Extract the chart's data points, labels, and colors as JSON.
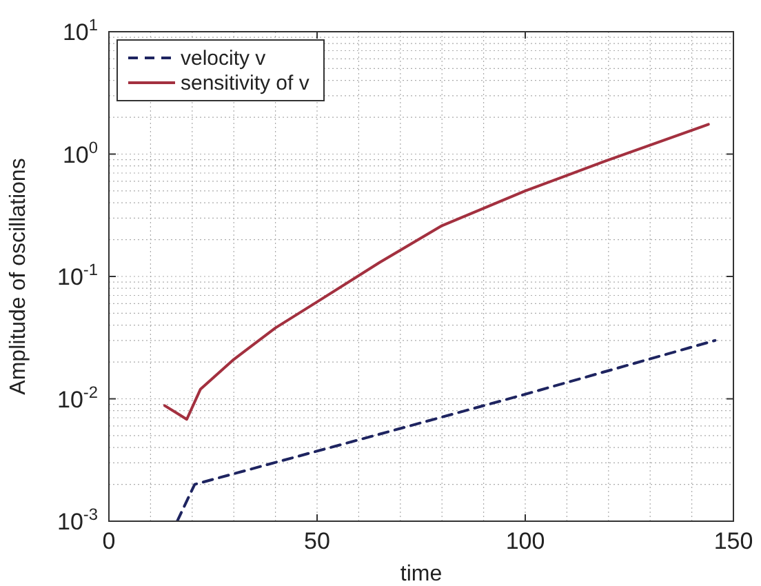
{
  "chart_data": {
    "type": "line",
    "xlabel": "time",
    "ylabel": "Amplitude of oscillations",
    "log": "y",
    "grid": true,
    "legend": "top left",
    "xlim": [
      0,
      150
    ],
    "xticks": [
      0,
      50,
      100,
      150
    ],
    "ylim": [
      0.001,
      10
    ],
    "yticks": [
      {
        "value": 0.001,
        "label": "10$^{-3}$"
      },
      {
        "value": 0.01,
        "label": "10$^{-2}$"
      },
      {
        "value": 0.1,
        "label": "10$^{-1}$"
      },
      {
        "value": 1,
        "label": "10$^{0}$"
      },
      {
        "value": 10,
        "label": "10$^{1}$"
      }
    ],
    "series": [
      {
        "name": "velocity v",
        "color": "#1e2460",
        "line_style": "dashed",
        "x": [
          16.4,
          20.6,
          64.6,
          100,
          145.6
        ],
        "values": [
          0.001,
          0.002,
          0.0051,
          0.0109,
          0.03
        ]
      },
      {
        "name": "sensitivity of v",
        "color": "#a3303f",
        "line_style": "solid",
        "x": [
          13.4,
          18.7,
          22,
          30,
          40,
          50,
          65,
          80,
          100,
          119,
          144
        ],
        "values": [
          0.0088,
          0.0068,
          0.012,
          0.021,
          0.038,
          0.062,
          0.13,
          0.26,
          0.5,
          0.87,
          1.75
        ]
      }
    ]
  }
}
